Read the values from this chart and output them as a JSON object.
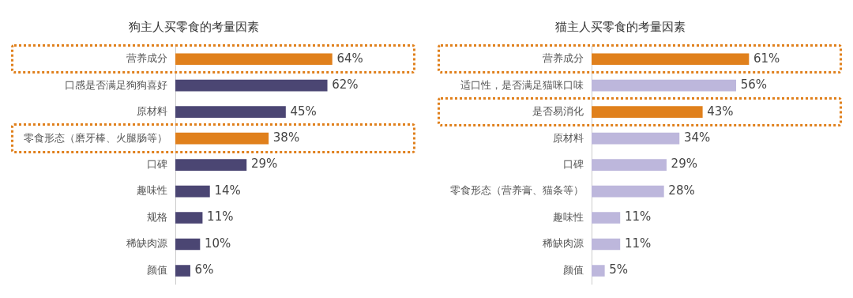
{
  "chart_data": [
    {
      "type": "bar",
      "orientation": "horizontal",
      "title": "狗主人买零食的考量因素",
      "categories": [
        "营养成分",
        "口感是否满足狗狗喜好",
        "原材料",
        "零食形态（磨牙棒、火腿肠等）",
        "口碑",
        "趣味性",
        "规格",
        "稀缺肉源",
        "颜值"
      ],
      "values": [
        64,
        62,
        45,
        38,
        29,
        14,
        11,
        10,
        6
      ],
      "value_labels": [
        "64%",
        "62%",
        "45%",
        "38%",
        "29%",
        "14%",
        "11%",
        "10%",
        "6%"
      ],
      "colors": [
        "#e0801c",
        "#4b4673",
        "#4b4673",
        "#e0801c",
        "#4b4673",
        "#4b4673",
        "#4b4673",
        "#4b4673",
        "#4b4673"
      ]
    },
    {
      "type": "bar",
      "orientation": "horizontal",
      "title": "猫主人买零食的考量因素",
      "categories": [
        "营养成分",
        "适口性，是否满足猫咪口味",
        "是否易消化",
        "原材料",
        "口碑",
        "零食形态（营养膏、猫条等）",
        "趣味性",
        "稀缺肉源",
        "颜值"
      ],
      "values": [
        61,
        56,
        43,
        34,
        29,
        28,
        11,
        11,
        5
      ],
      "value_labels": [
        "61%",
        "56%",
        "43%",
        "34%",
        "29%",
        "28%",
        "11%",
        "11%",
        "5%"
      ],
      "colors": [
        "#e0801c",
        "#bdb7dc",
        "#e0801c",
        "#bdb7dc",
        "#bdb7dc",
        "#bdb7dc",
        "#bdb7dc",
        "#bdb7dc",
        "#bdb7dc"
      ]
    }
  ]
}
